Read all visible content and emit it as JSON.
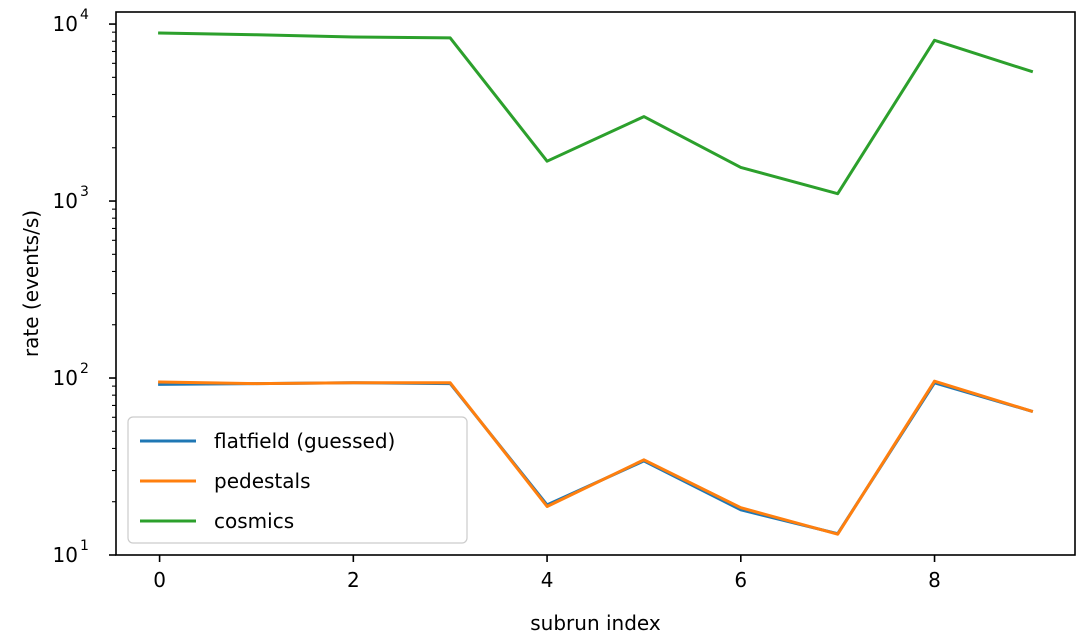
{
  "chart_data": {
    "type": "line",
    "title": "",
    "xlabel": "subrun index",
    "ylabel": "rate (events/s)",
    "yscale": "log",
    "xlim": [
      -0.45,
      9.45
    ],
    "ylim": [
      10,
      11700
    ],
    "x_ticks": [
      0,
      2,
      4,
      6,
      8
    ],
    "y_ticks": [
      {
        "value": 10,
        "base": "10",
        "exp": "1"
      },
      {
        "value": 100,
        "base": "10",
        "exp": "2"
      },
      {
        "value": 1000,
        "base": "10",
        "exp": "3"
      },
      {
        "value": 10000,
        "base": "10",
        "exp": "4"
      }
    ],
    "grid": false,
    "legend_position": "lower-left",
    "x": [
      0,
      1,
      2,
      3,
      4,
      5,
      6,
      7,
      8,
      9
    ],
    "series": [
      {
        "name": "flatfield (guessed)",
        "color": "#1f77b4",
        "values": [
          92,
          93,
          94,
          93,
          19.2,
          34,
          18.0,
          13.2,
          94,
          65
        ]
      },
      {
        "name": "pedestals",
        "color": "#ff7f0e",
        "values": [
          95,
          93,
          94,
          94,
          18.8,
          34.5,
          18.5,
          13.1,
          96,
          65
        ]
      },
      {
        "name": "cosmics",
        "color": "#2ca02c",
        "values": [
          8900,
          8700,
          8450,
          8350,
          1680,
          3000,
          1550,
          1100,
          8100,
          5400
        ]
      }
    ]
  }
}
